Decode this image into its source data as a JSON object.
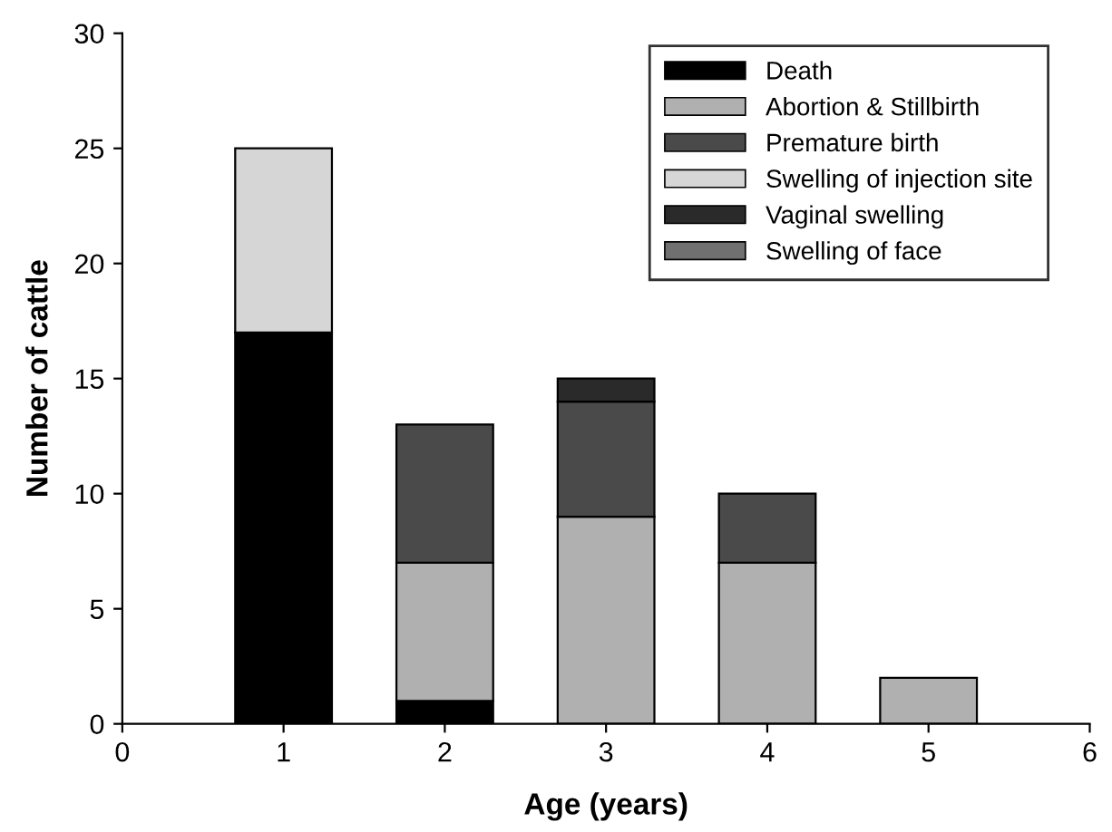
{
  "chart_data": {
    "type": "bar",
    "stacked": true,
    "xlabel": "Age (years)",
    "ylabel": "Number of cattle",
    "x": [
      1,
      2,
      3,
      4,
      5
    ],
    "series": [
      {
        "name": "Death",
        "color": "#000000",
        "values": [
          17,
          1,
          null,
          null,
          null
        ]
      },
      {
        "name": "Abortion & Stillbirth",
        "color": "#b0b0b0",
        "values": [
          null,
          6,
          9,
          7,
          2
        ]
      },
      {
        "name": "Premature birth",
        "color": "#4a4a4a",
        "values": [
          null,
          6,
          5,
          3,
          null
        ]
      },
      {
        "name": "Swelling of injection site",
        "color": "#d6d6d6",
        "values": [
          8,
          null,
          null,
          null,
          null
        ]
      },
      {
        "name": "Vaginal swelling",
        "color": "#2a2a2a",
        "values": [
          null,
          null,
          1,
          null,
          null
        ]
      },
      {
        "name": "Swelling of face",
        "color": "#707070",
        "values": [
          null,
          null,
          null,
          null,
          null
        ]
      }
    ],
    "xlim": [
      0,
      6
    ],
    "xticks": [
      0,
      1,
      2,
      3,
      4,
      5,
      6
    ],
    "ylim": [
      0,
      30
    ],
    "yticks": [
      0,
      5,
      10,
      15,
      20,
      25,
      30
    ],
    "grid": false,
    "legend": "top right"
  }
}
